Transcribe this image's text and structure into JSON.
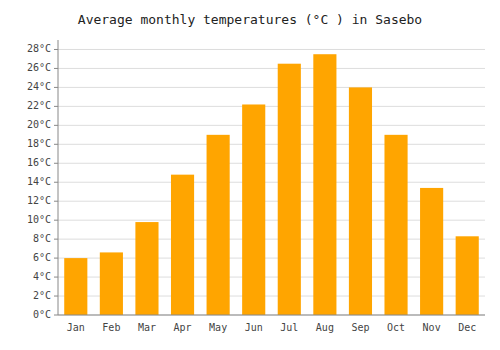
{
  "chart_data": {
    "type": "bar",
    "title": "Average monthly temperatures (°C ) in Sasebo",
    "categories": [
      "Jan",
      "Feb",
      "Mar",
      "Apr",
      "May",
      "Jun",
      "Jul",
      "Aug",
      "Sep",
      "Oct",
      "Nov",
      "Dec"
    ],
    "values": [
      6.0,
      6.6,
      9.8,
      14.8,
      19.0,
      22.2,
      26.5,
      27.5,
      24.0,
      19.0,
      13.4,
      8.3
    ],
    "color": "#FFA500",
    "ylim": [
      0,
      29
    ],
    "yticks": [
      {
        "value": 0,
        "label": "0°C"
      },
      {
        "value": 2,
        "label": "2°C"
      },
      {
        "value": 4,
        "label": "4°C"
      },
      {
        "value": 6,
        "label": "6°C"
      },
      {
        "value": 8,
        "label": "8°C"
      },
      {
        "value": 10,
        "label": "10°C"
      },
      {
        "value": 12,
        "label": "12°C"
      },
      {
        "value": 14,
        "label": "14°C"
      },
      {
        "value": 16,
        "label": "16°C"
      },
      {
        "value": 18,
        "label": "18°C"
      },
      {
        "value": 20,
        "label": "20°C"
      },
      {
        "value": 22,
        "label": "22°C"
      },
      {
        "value": 24,
        "label": "24°C"
      },
      {
        "value": 26,
        "label": "26°C"
      },
      {
        "value": 28,
        "label": "28°C"
      }
    ],
    "grid": true
  }
}
